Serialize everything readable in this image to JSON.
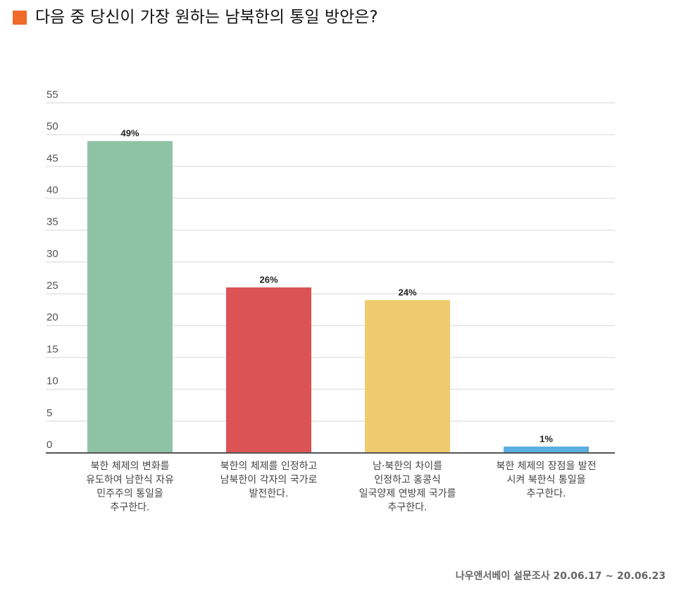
{
  "chart_data": {
    "type": "bar",
    "title": "다음 중 당신이 가장 원하는 남북한의 통일 방안은?",
    "source": "나우앤서베이 설문조사 20.06.17 ~ 20.06.23",
    "categories": [
      [
        "북한 체제의 변화를",
        "유도하여 남한식 자유",
        "민주주의 통일을",
        "추구한다."
      ],
      [
        "북한의 체제를 인정하고",
        "남북한이 각자의 국가로",
        "발전한다."
      ],
      [
        "남·북한의 차이를",
        "인정하고 홍콩식",
        "일국양제 연방제 국가를",
        "추구한다."
      ],
      [
        "북한 체제의 장점을 발전",
        "시켜 북한식 통일을",
        "추구한다."
      ]
    ],
    "values": [
      49,
      26,
      24,
      1
    ],
    "value_labels": [
      "49%",
      "26%",
      "24%",
      "1%"
    ],
    "colors": [
      "#8fc3a5",
      "#dc5355",
      "#eecb6c",
      "#5aaee0"
    ],
    "ylim": [
      0,
      55
    ],
    "yticks": [
      0,
      5,
      10,
      15,
      20,
      25,
      30,
      35,
      40,
      45,
      50,
      55
    ],
    "grid": true
  }
}
